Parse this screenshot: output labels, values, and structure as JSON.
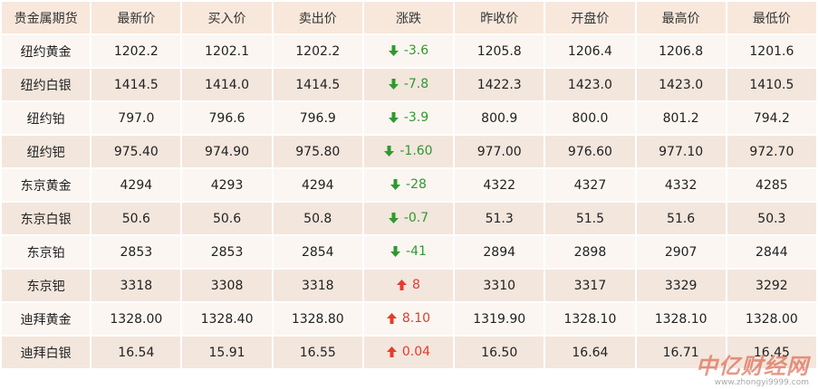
{
  "table": {
    "headers": [
      "贵金属期货",
      "最新价",
      "买入价",
      "卖出价",
      "涨跌",
      "昨收价",
      "开盘价",
      "最高价",
      "最低价"
    ],
    "rows": [
      {
        "name": "纽约黄金",
        "last": "1202.2",
        "bid": "1202.1",
        "ask": "1202.2",
        "change": "-3.6",
        "direction": "down",
        "prev_close": "1205.8",
        "open": "1206.4",
        "high": "1206.8",
        "low": "1201.6"
      },
      {
        "name": "纽约白银",
        "last": "1414.5",
        "bid": "1414.0",
        "ask": "1414.5",
        "change": "-7.8",
        "direction": "down",
        "prev_close": "1422.3",
        "open": "1423.0",
        "high": "1423.0",
        "low": "1410.5"
      },
      {
        "name": "纽约铂",
        "last": "797.0",
        "bid": "796.6",
        "ask": "796.9",
        "change": "-3.9",
        "direction": "down",
        "prev_close": "800.9",
        "open": "800.0",
        "high": "801.2",
        "low": "794.2"
      },
      {
        "name": "纽约钯",
        "last": "975.40",
        "bid": "974.90",
        "ask": "975.80",
        "change": "-1.60",
        "direction": "down",
        "prev_close": "977.00",
        "open": "976.60",
        "high": "977.10",
        "low": "972.70"
      },
      {
        "name": "东京黄金",
        "last": "4294",
        "bid": "4293",
        "ask": "4294",
        "change": "-28",
        "direction": "down",
        "prev_close": "4322",
        "open": "4327",
        "high": "4332",
        "low": "4285"
      },
      {
        "name": "东京白银",
        "last": "50.6",
        "bid": "50.6",
        "ask": "50.8",
        "change": "-0.7",
        "direction": "down",
        "prev_close": "51.3",
        "open": "51.5",
        "high": "51.6",
        "low": "50.3"
      },
      {
        "name": "东京铂",
        "last": "2853",
        "bid": "2853",
        "ask": "2854",
        "change": "-41",
        "direction": "down",
        "prev_close": "2894",
        "open": "2898",
        "high": "2907",
        "low": "2844"
      },
      {
        "name": "东京钯",
        "last": "3318",
        "bid": "3308",
        "ask": "3318",
        "change": "8",
        "direction": "up",
        "prev_close": "3310",
        "open": "3317",
        "high": "3329",
        "low": "3292"
      },
      {
        "name": "迪拜黄金",
        "last": "1328.00",
        "bid": "1328.40",
        "ask": "1328.80",
        "change": "8.10",
        "direction": "up",
        "prev_close": "1319.90",
        "open": "1328.10",
        "high": "1328.10",
        "low": "1328.00"
      },
      {
        "name": "迪拜白银",
        "last": "16.54",
        "bid": "15.91",
        "ask": "16.55",
        "change": "0.04",
        "direction": "up",
        "prev_close": "16.50",
        "open": "16.64",
        "high": "16.71",
        "low": "16.45"
      }
    ]
  },
  "colors": {
    "up": "#e53b2c",
    "down": "#2e9a2e",
    "header_bg": "#f8e8dc",
    "row_odd_bg": "#fbf6f2",
    "row_even_bg": "#f3e6dd"
  },
  "icons": {
    "up": "arrow-up-icon",
    "down": "arrow-down-icon"
  },
  "watermark": {
    "title": "中亿财经网",
    "url": "www.zhongyi9999.com"
  }
}
